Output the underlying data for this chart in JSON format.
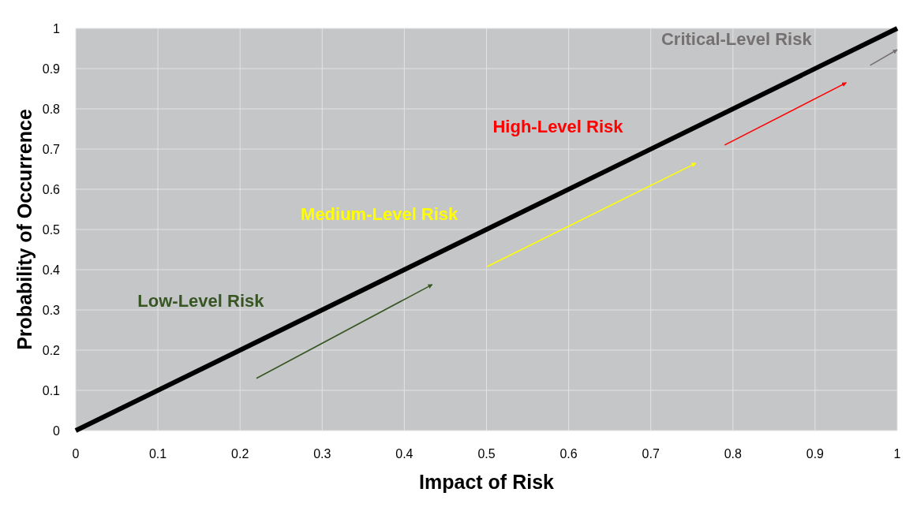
{
  "chart_data": {
    "type": "line",
    "xlabel": "Impact of Risk",
    "ylabel": "Probability of Occurrence",
    "xlim": [
      0,
      1
    ],
    "ylim": [
      0,
      1
    ],
    "xticks": [
      0,
      0.1,
      0.2,
      0.3,
      0.4,
      0.5,
      0.6,
      0.7,
      0.8,
      0.9,
      1
    ],
    "yticks": [
      0,
      0.1,
      0.2,
      0.3,
      0.4,
      0.5,
      0.6,
      0.7,
      0.8,
      0.9,
      1
    ],
    "grid": true,
    "marker": "none",
    "series": [
      {
        "color": "#000000",
        "x": [
          0,
          1
        ],
        "values": [
          0,
          1
        ]
      },
      {
        "color": "#375623",
        "x": [
          0.22,
          0.434
        ],
        "values": [
          0.13,
          0.363
        ]
      },
      {
        "color": "#ffff00",
        "x": [
          0.501,
          0.755
        ],
        "values": [
          0.408,
          0.665
        ]
      },
      {
        "color": "#ff0000",
        "x": [
          0.79,
          0.938
        ],
        "values": [
          0.71,
          0.865
        ]
      },
      {
        "color": "#767171",
        "x": [
          0.967,
          1
        ],
        "values": [
          0.908,
          0.947
        ]
      }
    ],
    "annotations": [
      "Low-Level Risk",
      "Medium-Level Risk",
      "High-Level Risk",
      "Critical-Level Risk"
    ]
  }
}
